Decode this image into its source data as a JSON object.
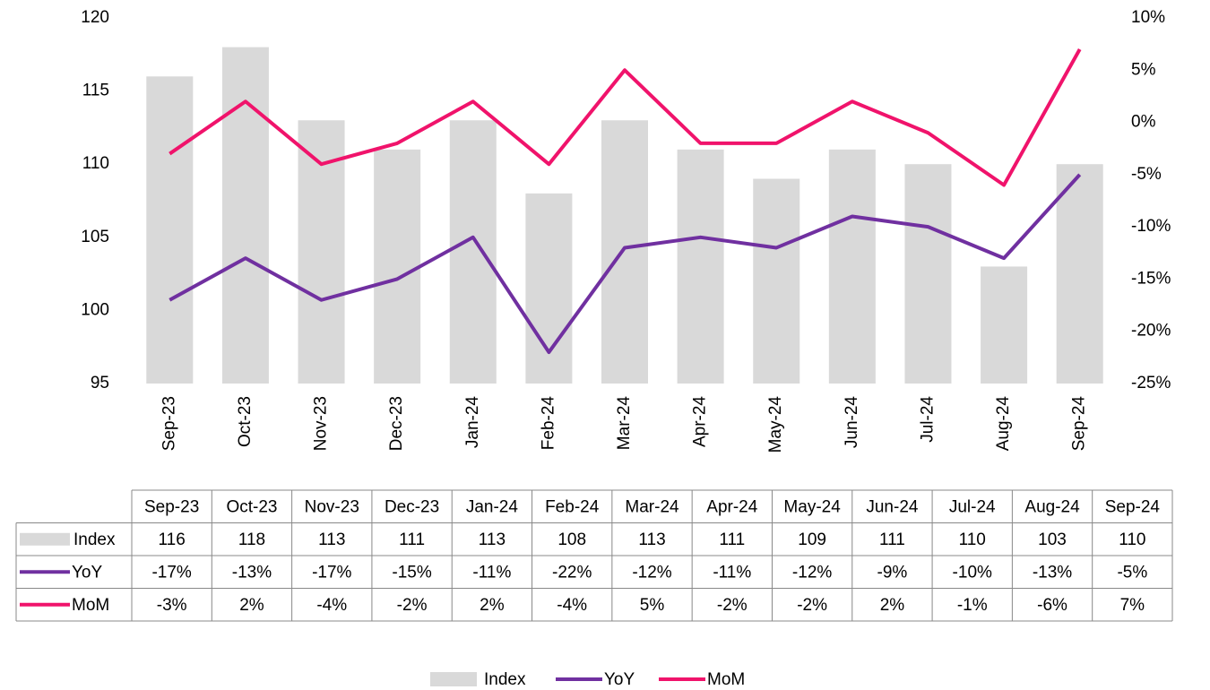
{
  "chart_data": {
    "type": "combo",
    "categories": [
      "Sep-23",
      "Oct-23",
      "Nov-23",
      "Dec-23",
      "Jan-24",
      "Feb-24",
      "Mar-24",
      "Apr-24",
      "May-24",
      "Jun-24",
      "Jul-24",
      "Aug-24",
      "Sep-24"
    ],
    "series": [
      {
        "name": "Index",
        "type": "bar",
        "axis": "y",
        "color": "#d9d9d9",
        "values": [
          116,
          118,
          113,
          111,
          113,
          108,
          113,
          111,
          109,
          111,
          110,
          103,
          110
        ]
      },
      {
        "name": "YoY",
        "type": "line",
        "axis": "y2",
        "color": "#7030a0",
        "values": [
          -17,
          -13,
          -17,
          -15,
          -11,
          -22,
          -12,
          -11,
          -12,
          -9,
          -10,
          -13,
          -5
        ],
        "value_labels": [
          "-17%",
          "-13%",
          "-17%",
          "-15%",
          "-11%",
          "-22%",
          "-12%",
          "-11%",
          "-12%",
          "-9%",
          "-10%",
          "-13%",
          "-5%"
        ]
      },
      {
        "name": "MoM",
        "type": "line",
        "axis": "y2",
        "color": "#f0136b",
        "values": [
          -3,
          2,
          -4,
          -2,
          2,
          -4,
          5,
          -2,
          -2,
          2,
          -1,
          -6,
          7
        ],
        "value_labels": [
          "-3%",
          "2%",
          "-4%",
          "-2%",
          "2%",
          "-4%",
          "5%",
          "-2%",
          "-2%",
          "2%",
          "-1%",
          "-6%",
          "7%"
        ]
      }
    ],
    "ylim": [
      95,
      120
    ],
    "yticks": [
      95,
      100,
      105,
      110,
      115,
      120
    ],
    "y2lim": [
      -25,
      10
    ],
    "y2ticks": [
      {
        "value": -25,
        "label": "-25%"
      },
      {
        "value": -20,
        "label": "-20%"
      },
      {
        "value": -15,
        "label": "-15%"
      },
      {
        "value": -10,
        "label": "-10%"
      },
      {
        "value": -5,
        "label": "-5%"
      },
      {
        "value": 0,
        "label": "0%"
      },
      {
        "value": 5,
        "label": "5%"
      },
      {
        "value": 10,
        "label": "10%"
      }
    ],
    "grid": false,
    "legend": "bottom",
    "data_table": true
  }
}
